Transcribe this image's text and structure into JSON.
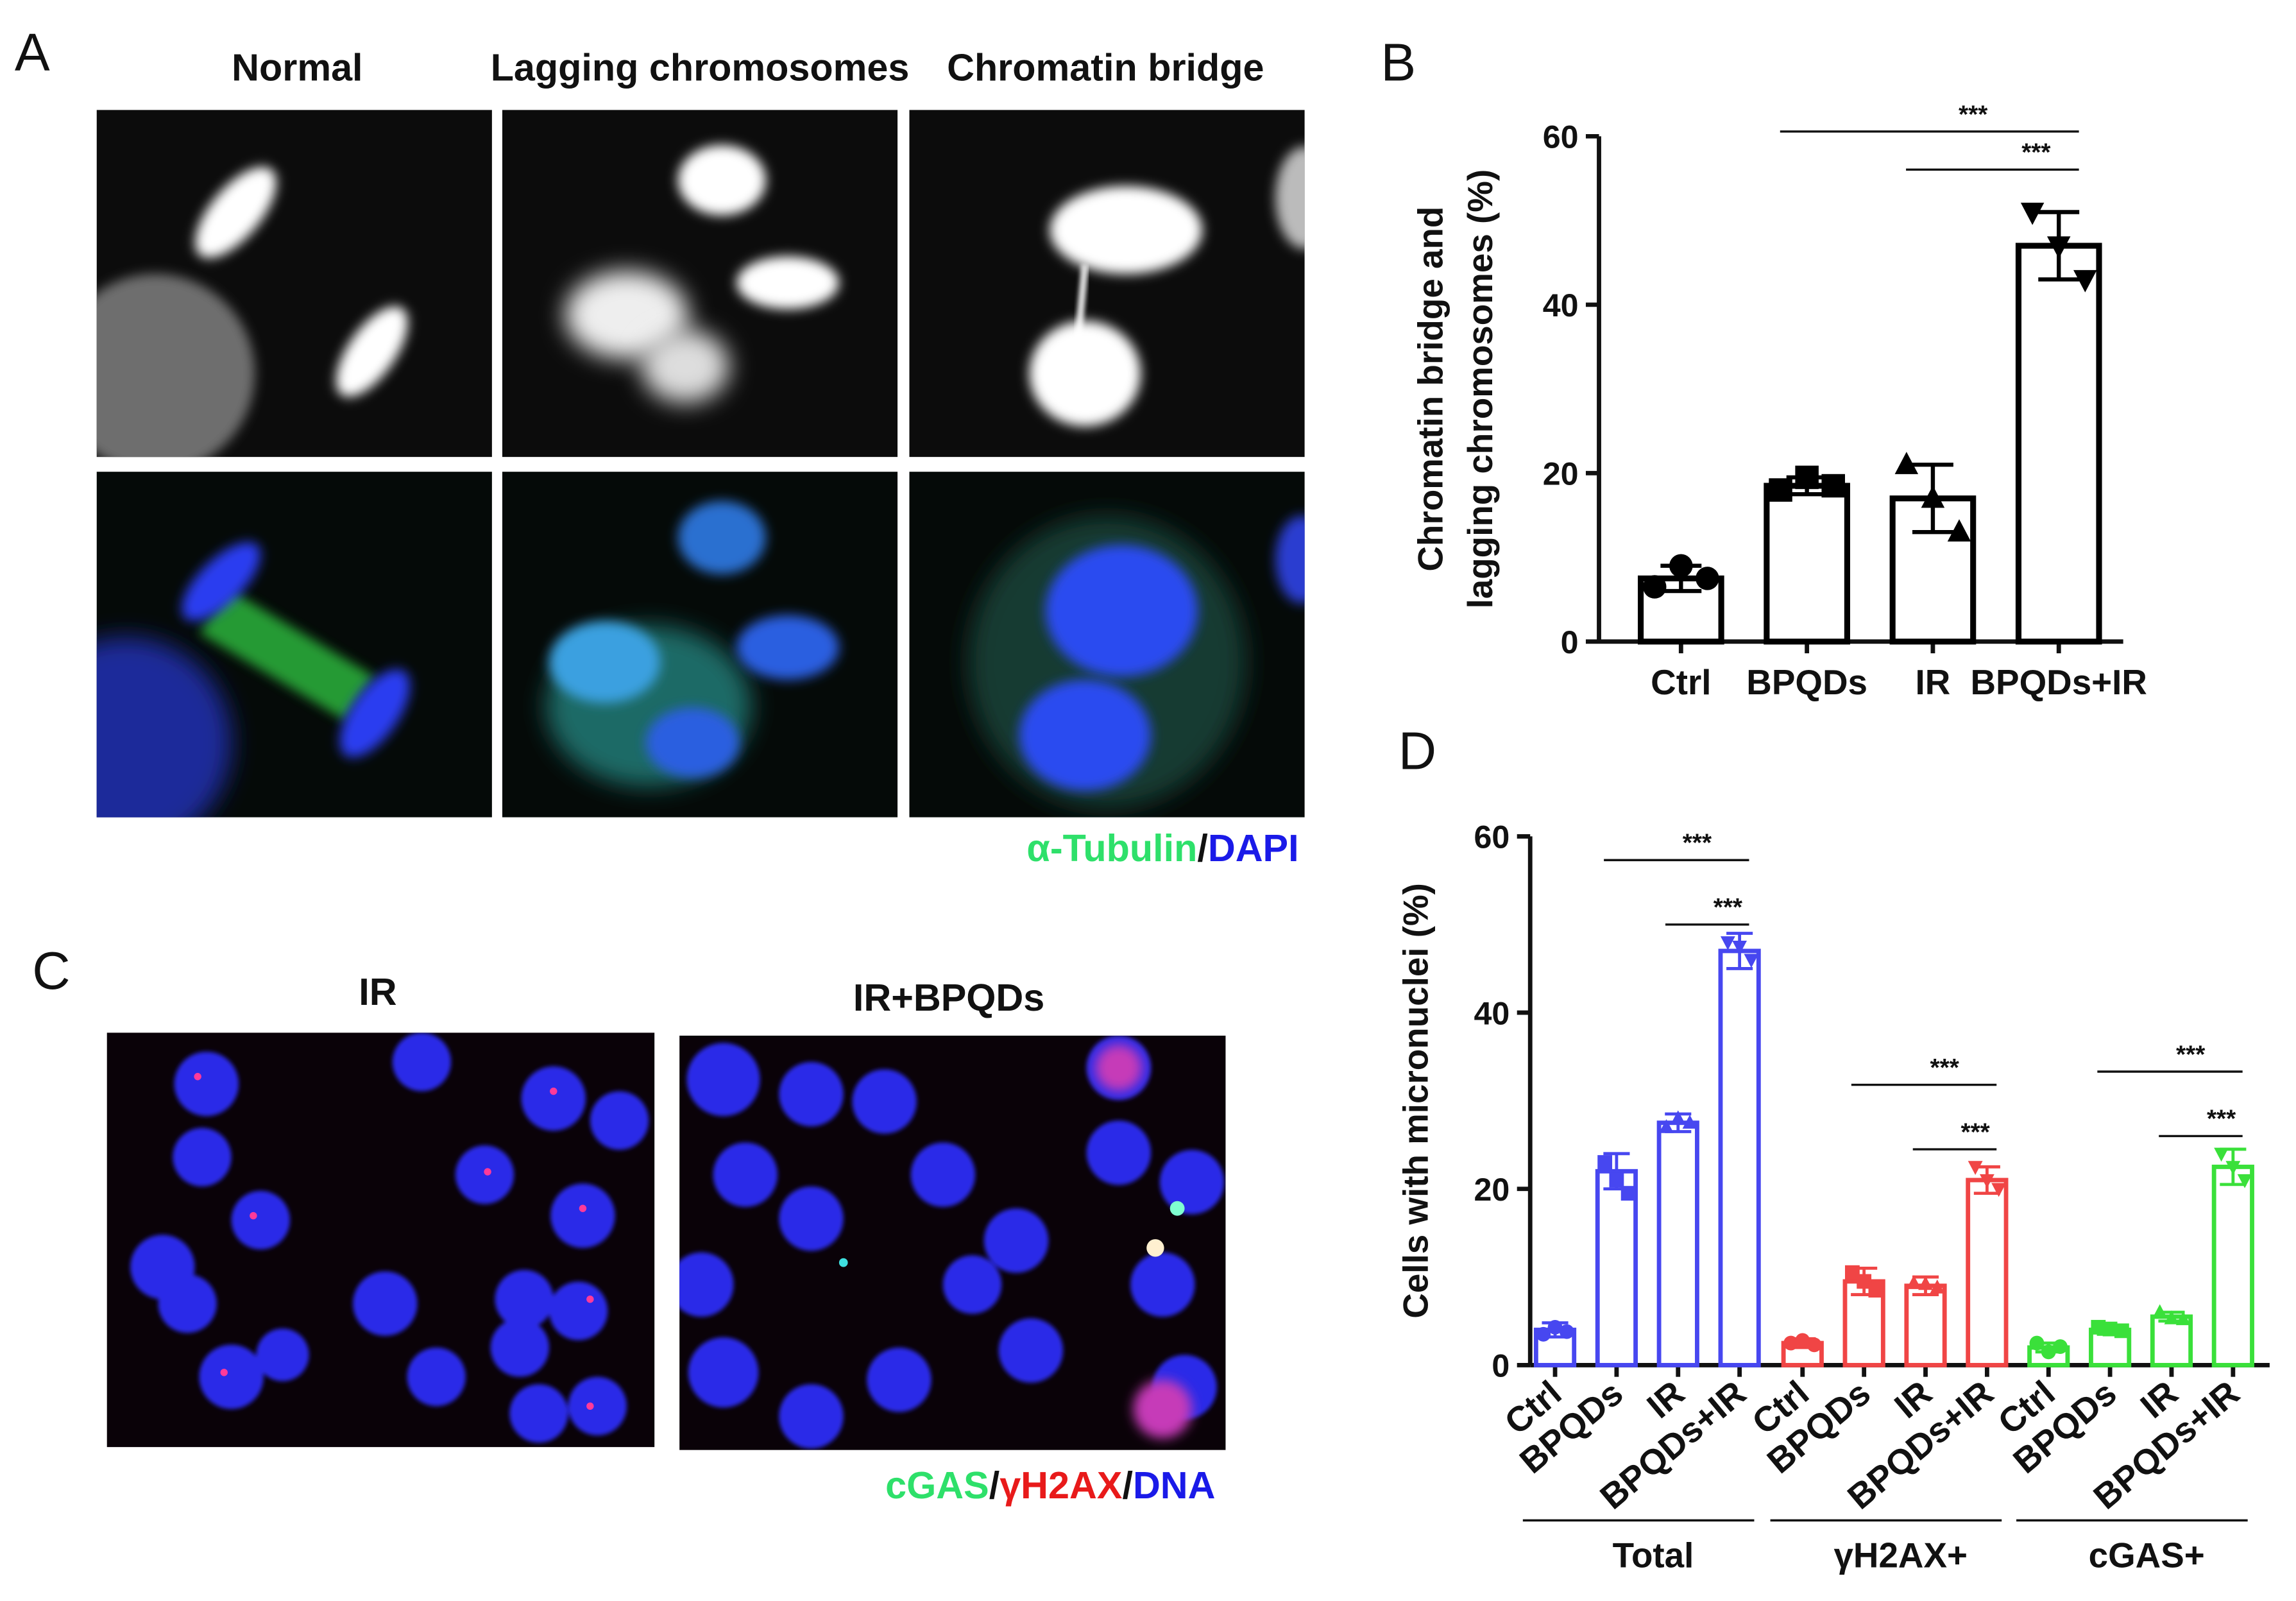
{
  "panel_labels": [
    "A",
    "B",
    "C",
    "D"
  ],
  "panel_a": {
    "titles": [
      "Normal",
      "Lagging chromosomes",
      "Chromatin bridge"
    ],
    "legend": [
      "α-Tubulin",
      "/",
      "DAPI"
    ]
  },
  "panel_c": {
    "titles": [
      "IR",
      "IR+BPQDs"
    ],
    "legend": [
      "cGAS",
      "/",
      "γH2AX",
      "/",
      "DNA"
    ]
  },
  "chart_data": [
    {
      "type": "bar",
      "ylabel": [
        "Chromatin bridge and",
        "lagging chromosomes (%)"
      ],
      "categories": [
        "Ctrl",
        "BPQDs",
        "IR",
        "BPQDs+IR"
      ],
      "values": [
        7.5,
        18.5,
        17,
        47
      ],
      "errors": [
        1.5,
        1,
        4,
        4
      ],
      "points": [
        [
          6.5,
          9,
          7.5
        ],
        [
          18,
          19.5,
          18.5
        ],
        [
          21,
          17,
          13
        ],
        [
          51,
          47,
          43
        ]
      ],
      "markers": [
        "circle",
        "square",
        "triangle",
        "triangle-down"
      ],
      "color": "#000000",
      "ylim": [
        0,
        60
      ],
      "yticks": [
        0,
        20,
        40,
        60
      ],
      "comparisons": [
        {
          "label": "***",
          "between": [
            "BPQDs",
            "BPQDs+IR"
          ]
        },
        {
          "label": "***",
          "between": [
            "IR",
            "BPQDs+IR"
          ]
        }
      ]
    },
    {
      "type": "grouped-bar",
      "ylabel": "Cells with micronuclei (%)",
      "categories": [
        "Ctrl",
        "BPQDs",
        "IR",
        "BPQDs+IR"
      ],
      "markers": [
        "circle",
        "square",
        "triangle",
        "triangle-down"
      ],
      "ylim": [
        0,
        60
      ],
      "yticks": [
        0,
        20,
        40,
        60
      ],
      "series": [
        {
          "name": "Total",
          "color": "#4747f0",
          "values": [
            4,
            22,
            27.5,
            47
          ],
          "errors": [
            0.8,
            2,
            1,
            2
          ],
          "points": [
            [
              3.5,
              4.3,
              3.8
            ],
            [
              23,
              21,
              19.5
            ],
            [
              27,
              28,
              27.5
            ],
            [
              48,
              47.5,
              46
            ]
          ],
          "comparisons": [
            {
              "label": "***",
              "between": [
                "BPQDs",
                "BPQDs+IR"
              ]
            },
            {
              "label": "***",
              "between": [
                "IR",
                "BPQDs+IR"
              ]
            }
          ]
        },
        {
          "name": "γH2AX+",
          "color": "#f04545",
          "values": [
            2.5,
            9.5,
            9,
            21
          ],
          "errors": [
            0.5,
            1.5,
            1,
            1.5
          ],
          "points": [
            [
              2.5,
              2.8,
              2.3
            ],
            [
              10.5,
              9.5,
              8.5
            ],
            [
              9.3,
              9.2,
              8.8
            ],
            [
              22.5,
              21,
              20
            ]
          ],
          "comparisons": [
            {
              "label": "***",
              "between": [
                "BPQDs",
                "BPQDs+IR"
              ]
            },
            {
              "label": "***",
              "between": [
                "IR",
                "BPQDs+IR"
              ]
            }
          ]
        },
        {
          "name": "cGAS+",
          "color": "#3ae03a",
          "values": [
            2,
            4,
            5.5,
            22.5
          ],
          "errors": [
            0.5,
            0.5,
            0.5,
            2
          ],
          "points": [
            [
              2.5,
              1.5,
              2.1
            ],
            [
              4.3,
              4.1,
              3.9
            ],
            [
              6,
              5.3,
              5.2
            ],
            [
              24,
              22.5,
              21
            ]
          ],
          "comparisons": [
            {
              "label": "***",
              "between": [
                "BPQDs",
                "BPQDs+IR"
              ]
            },
            {
              "label": "***",
              "between": [
                "IR",
                "BPQDs+IR"
              ]
            }
          ]
        }
      ]
    }
  ]
}
